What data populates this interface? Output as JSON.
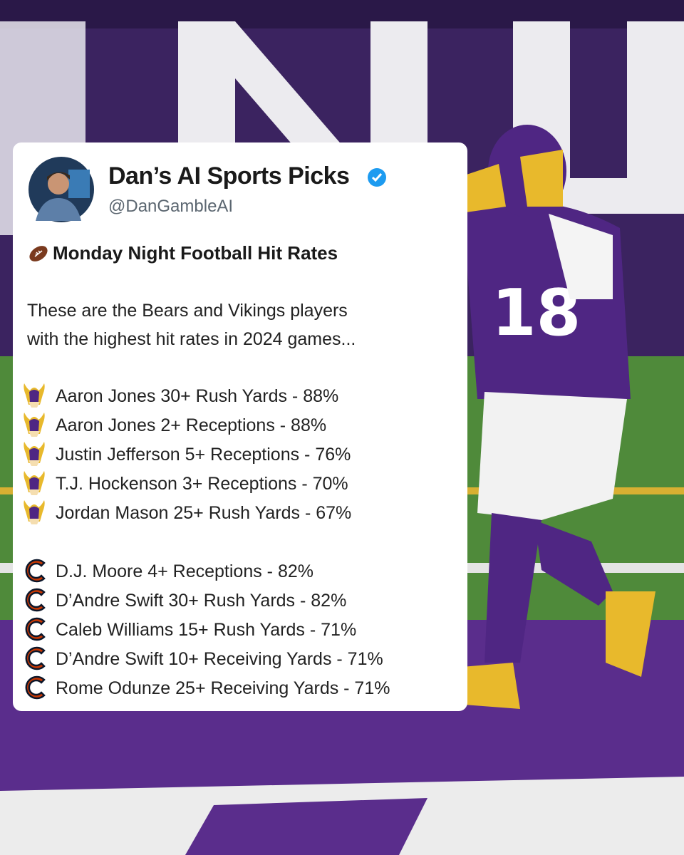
{
  "header": {
    "name": "Dan’s AI Sports Picks",
    "handle": "@DanGambleAI"
  },
  "post": {
    "heading": "Monday Night Football Hit Rates",
    "intro": [
      "These are the Bears and Vikings players",
      "with the highest hit rates in 2024 games..."
    ],
    "groups": [
      {
        "picks": [
          "Aaron Jones 30+ Rush Yards - 88%",
          "Aaron Jones 2+ Receptions - 88%",
          "Justin Jefferson 5+ Receptions - 76%",
          "T.J. Hockenson 3+ Receptions - 70%",
          "Jordan Mason 25+ Rush Yards - 67%"
        ]
      },
      {
        "picks": [
          "D.J. Moore 4+ Receptions - 82%",
          "D’Andre Swift 30+ Rush Yards - 82%",
          "Caleb Williams 15+ Rush Yards - 71%",
          "D’Andre Swift 10+ Receiving Yards - 71%",
          "Rome Odunze 25+ Receiving Yards - 71%"
        ]
      }
    ]
  }
}
